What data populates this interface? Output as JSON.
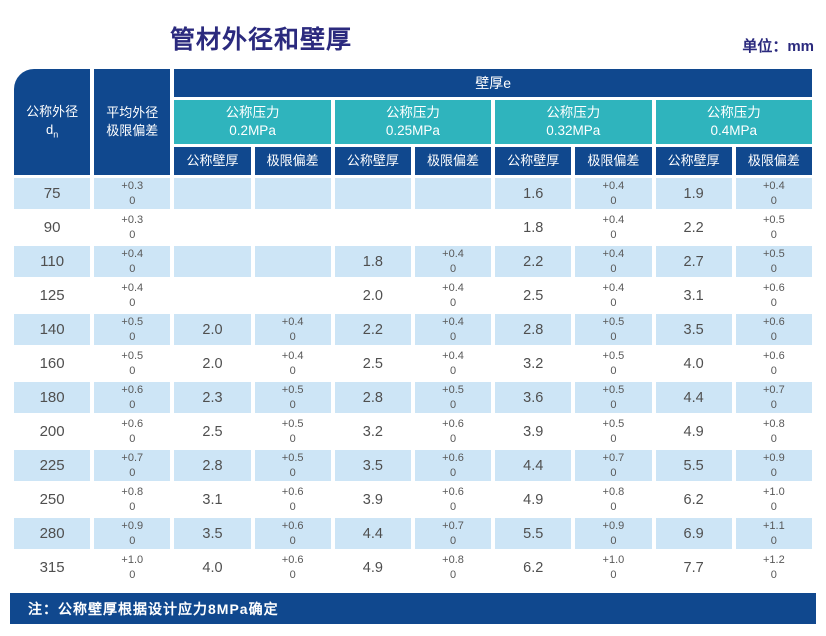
{
  "page": {
    "title": "管材外径和壁厚",
    "unit_label": "单位：mm",
    "note": "注：公称壁厚根据设计应力8MPa确定"
  },
  "colors": {
    "header_blue": "#10488e",
    "teal": "#2fb4bd",
    "row_stripe": "#cde5f6",
    "title_color": "#2b2a7e",
    "cell_text": "#4f4f4f"
  },
  "table": {
    "span_header": "壁厚e",
    "col1_header": {
      "line1": "公称外径",
      "symbol_base": "d",
      "symbol_sub": "n"
    },
    "col2_header": {
      "line1": "平均外径",
      "line2": "极限偏差"
    },
    "pressure_groups": [
      {
        "line1": "公称压力",
        "line2": "0.2MPa"
      },
      {
        "line1": "公称压力",
        "line2": "0.25MPa"
      },
      {
        "line1": "公称压力",
        "line2": "0.32MPa"
      },
      {
        "line1": "公称压力",
        "line2": "0.4MPa"
      }
    ],
    "sub_headers": [
      "公称壁厚",
      "极限偏差"
    ],
    "rows": [
      {
        "dn": "75",
        "dn_dev_top": "+0.3",
        "dn_dev_bottom": "0",
        "groups": [
          {
            "wall": "",
            "dev_top": "",
            "dev_bottom": ""
          },
          {
            "wall": "",
            "dev_top": "",
            "dev_bottom": ""
          },
          {
            "wall": "1.6",
            "dev_top": "+0.4",
            "dev_bottom": "0"
          },
          {
            "wall": "1.9",
            "dev_top": "+0.4",
            "dev_bottom": "0"
          }
        ]
      },
      {
        "dn": "90",
        "dn_dev_top": "+0.3",
        "dn_dev_bottom": "0",
        "groups": [
          {
            "wall": "",
            "dev_top": "",
            "dev_bottom": ""
          },
          {
            "wall": "",
            "dev_top": "",
            "dev_bottom": ""
          },
          {
            "wall": "1.8",
            "dev_top": "+0.4",
            "dev_bottom": "0"
          },
          {
            "wall": "2.2",
            "dev_top": "+0.5",
            "dev_bottom": "0"
          }
        ]
      },
      {
        "dn": "110",
        "dn_dev_top": "+0.4",
        "dn_dev_bottom": "0",
        "groups": [
          {
            "wall": "",
            "dev_top": "",
            "dev_bottom": ""
          },
          {
            "wall": "1.8",
            "dev_top": "+0.4",
            "dev_bottom": "0"
          },
          {
            "wall": "2.2",
            "dev_top": "+0.4",
            "dev_bottom": "0"
          },
          {
            "wall": "2.7",
            "dev_top": "+0.5",
            "dev_bottom": "0"
          }
        ]
      },
      {
        "dn": "125",
        "dn_dev_top": "+0.4",
        "dn_dev_bottom": "0",
        "groups": [
          {
            "wall": "",
            "dev_top": "",
            "dev_bottom": ""
          },
          {
            "wall": "2.0",
            "dev_top": "+0.4",
            "dev_bottom": "0"
          },
          {
            "wall": "2.5",
            "dev_top": "+0.4",
            "dev_bottom": "0"
          },
          {
            "wall": "3.1",
            "dev_top": "+0.6",
            "dev_bottom": "0"
          }
        ]
      },
      {
        "dn": "140",
        "dn_dev_top": "+0.5",
        "dn_dev_bottom": "0",
        "groups": [
          {
            "wall": "2.0",
            "dev_top": "+0.4",
            "dev_bottom": "0"
          },
          {
            "wall": "2.2",
            "dev_top": "+0.4",
            "dev_bottom": "0"
          },
          {
            "wall": "2.8",
            "dev_top": "+0.5",
            "dev_bottom": "0"
          },
          {
            "wall": "3.5",
            "dev_top": "+0.6",
            "dev_bottom": "0"
          }
        ]
      },
      {
        "dn": "160",
        "dn_dev_top": "+0.5",
        "dn_dev_bottom": "0",
        "groups": [
          {
            "wall": "2.0",
            "dev_top": "+0.4",
            "dev_bottom": "0"
          },
          {
            "wall": "2.5",
            "dev_top": "+0.4",
            "dev_bottom": "0"
          },
          {
            "wall": "3.2",
            "dev_top": "+0.5",
            "dev_bottom": "0"
          },
          {
            "wall": "4.0",
            "dev_top": "+0.6",
            "dev_bottom": "0"
          }
        ]
      },
      {
        "dn": "180",
        "dn_dev_top": "+0.6",
        "dn_dev_bottom": "0",
        "groups": [
          {
            "wall": "2.3",
            "dev_top": "+0.5",
            "dev_bottom": "0"
          },
          {
            "wall": "2.8",
            "dev_top": "+0.5",
            "dev_bottom": "0"
          },
          {
            "wall": "3.6",
            "dev_top": "+0.5",
            "dev_bottom": "0"
          },
          {
            "wall": "4.4",
            "dev_top": "+0.7",
            "dev_bottom": "0"
          }
        ]
      },
      {
        "dn": "200",
        "dn_dev_top": "+0.6",
        "dn_dev_bottom": "0",
        "groups": [
          {
            "wall": "2.5",
            "dev_top": "+0.5",
            "dev_bottom": "0"
          },
          {
            "wall": "3.2",
            "dev_top": "+0.6",
            "dev_bottom": "0"
          },
          {
            "wall": "3.9",
            "dev_top": "+0.5",
            "dev_bottom": "0"
          },
          {
            "wall": "4.9",
            "dev_top": "+0.8",
            "dev_bottom": "0"
          }
        ]
      },
      {
        "dn": "225",
        "dn_dev_top": "+0.7",
        "dn_dev_bottom": "0",
        "groups": [
          {
            "wall": "2.8",
            "dev_top": "+0.5",
            "dev_bottom": "0"
          },
          {
            "wall": "3.5",
            "dev_top": "+0.6",
            "dev_bottom": "0"
          },
          {
            "wall": "4.4",
            "dev_top": "+0.7",
            "dev_bottom": "0"
          },
          {
            "wall": "5.5",
            "dev_top": "+0.9",
            "dev_bottom": "0"
          }
        ]
      },
      {
        "dn": "250",
        "dn_dev_top": "+0.8",
        "dn_dev_bottom": "0",
        "groups": [
          {
            "wall": "3.1",
            "dev_top": "+0.6",
            "dev_bottom": "0"
          },
          {
            "wall": "3.9",
            "dev_top": "+0.6",
            "dev_bottom": "0"
          },
          {
            "wall": "4.9",
            "dev_top": "+0.8",
            "dev_bottom": "0"
          },
          {
            "wall": "6.2",
            "dev_top": "+1.0",
            "dev_bottom": "0"
          }
        ]
      },
      {
        "dn": "280",
        "dn_dev_top": "+0.9",
        "dn_dev_bottom": "0",
        "groups": [
          {
            "wall": "3.5",
            "dev_top": "+0.6",
            "dev_bottom": "0"
          },
          {
            "wall": "4.4",
            "dev_top": "+0.7",
            "dev_bottom": "0"
          },
          {
            "wall": "5.5",
            "dev_top": "+0.9",
            "dev_bottom": "0"
          },
          {
            "wall": "6.9",
            "dev_top": "+1.1",
            "dev_bottom": "0"
          }
        ]
      },
      {
        "dn": "315",
        "dn_dev_top": "+1.0",
        "dn_dev_bottom": "0",
        "groups": [
          {
            "wall": "4.0",
            "dev_top": "+0.6",
            "dev_bottom": "0"
          },
          {
            "wall": "4.9",
            "dev_top": "+0.8",
            "dev_bottom": "0"
          },
          {
            "wall": "6.2",
            "dev_top": "+1.0",
            "dev_bottom": "0"
          },
          {
            "wall": "7.7",
            "dev_top": "+1.2",
            "dev_bottom": "0"
          }
        ]
      }
    ]
  }
}
